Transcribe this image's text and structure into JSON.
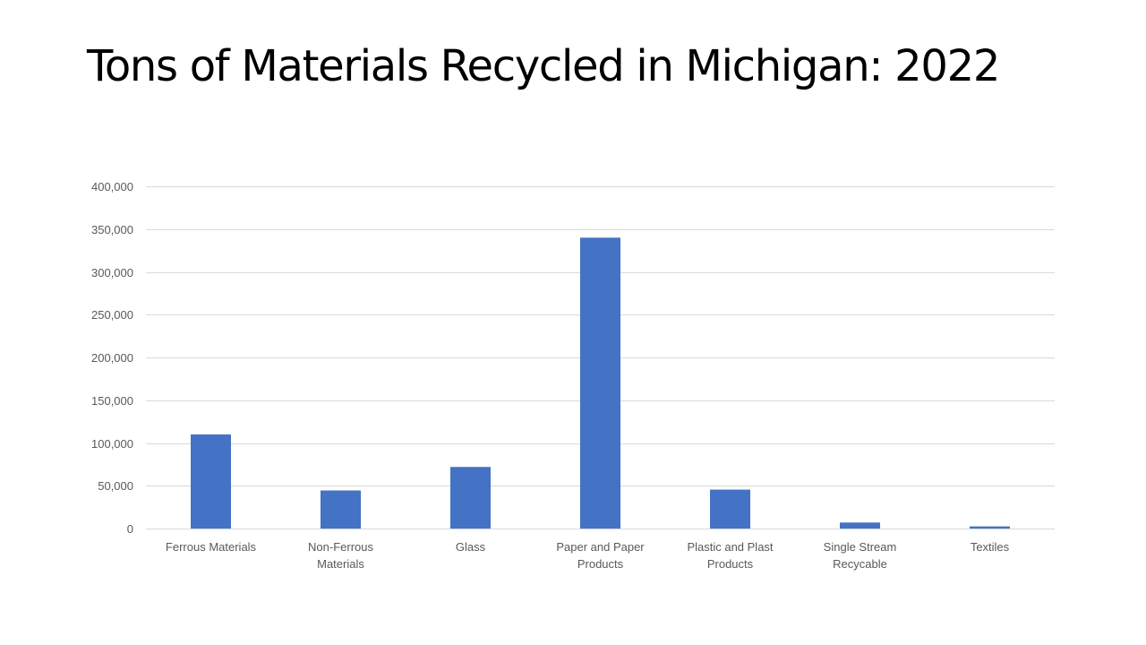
{
  "slide": {
    "title": "Tons of Materials Recycled in Michigan: 2022"
  },
  "chart_data": {
    "type": "bar",
    "title": "",
    "xlabel": "",
    "ylabel": "",
    "categories": [
      [
        "Ferrous Materials"
      ],
      [
        "Non-Ferrous",
        "Materials"
      ],
      [
        "Glass"
      ],
      [
        "Paper and Paper",
        "Products"
      ],
      [
        "Plastic and Plast",
        "Products"
      ],
      [
        "Single Stream",
        "Recycable"
      ],
      [
        "Textiles"
      ]
    ],
    "values": [
      110000,
      44500,
      72000,
      340000,
      45500,
      7000,
      2500
    ],
    "ylim": [
      0,
      400000
    ],
    "yticks": [
      0,
      50000,
      100000,
      150000,
      200000,
      250000,
      300000,
      350000,
      400000
    ],
    "ytick_labels": [
      "0",
      "50,000",
      "100,000",
      "150,000",
      "200,000",
      "250,000",
      "300,000",
      "350,000",
      "400,000"
    ],
    "grid": true,
    "legend": "none",
    "colors": {
      "bar": "#4472C4",
      "grid": "#D9D9D9",
      "text": "#595959"
    }
  }
}
